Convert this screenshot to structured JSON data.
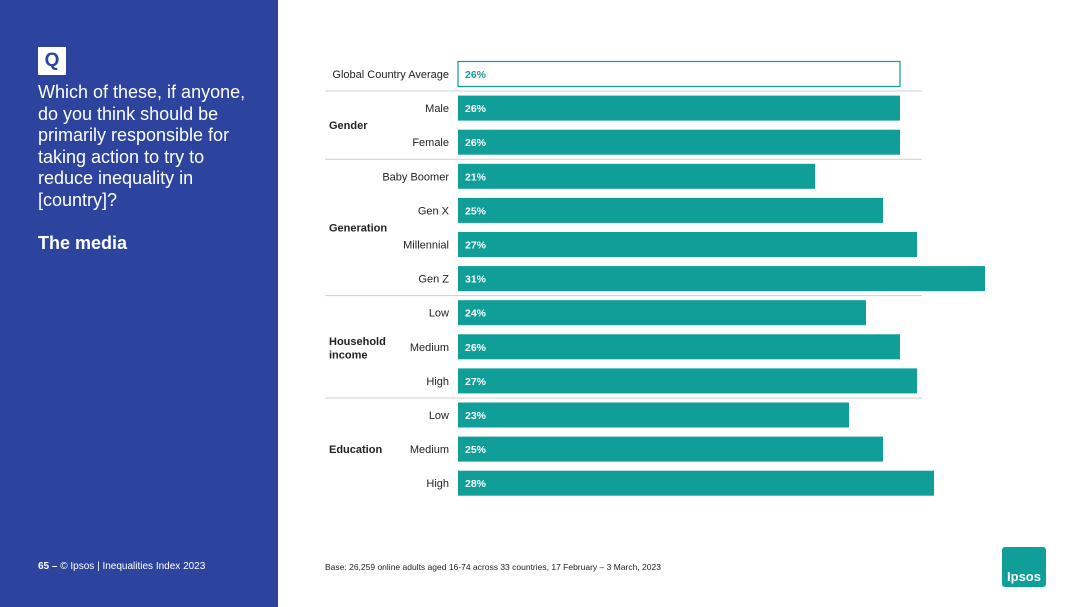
{
  "sidebar": {
    "badge": "Q",
    "question": "Which of these, if anyone, do you think should be primarily responsible for taking action to try to reduce inequality in [country]?",
    "answer": "The media"
  },
  "footer": {
    "page": "65 –",
    "copyright": "© Ipsos | Inequalities Index 2023"
  },
  "base_note": "Base: 26,259 online adults aged 16-74 across 33 countries, 17 February – 3 March, 2023",
  "logo": {
    "text": "Ipsos",
    "color": "#0f9e98"
  },
  "colors": {
    "sidebar": "#2c449d",
    "bar": "#0f9e98",
    "average_fill": "#ffffff",
    "average_outline": "#0f9e98"
  },
  "chart_data": {
    "type": "bar",
    "orientation": "horizontal",
    "unit": "%",
    "xlim": [
      0,
      31
    ],
    "average": {
      "label": "Global Country Average",
      "value": 26
    },
    "groups": [
      {
        "name": "Gender",
        "rows": [
          {
            "label": "Male",
            "value": 26
          },
          {
            "label": "Female",
            "value": 26
          }
        ]
      },
      {
        "name": "Generation",
        "rows": [
          {
            "label": "Baby Boomer",
            "value": 21
          },
          {
            "label": "Gen X",
            "value": 25
          },
          {
            "label": "Millennial",
            "value": 27
          },
          {
            "label": "Gen Z",
            "value": 31
          }
        ]
      },
      {
        "name": "Household income",
        "rows": [
          {
            "label": "Low",
            "value": 24
          },
          {
            "label": "Medium",
            "value": 26
          },
          {
            "label": "High",
            "value": 27
          }
        ]
      },
      {
        "name": "Education",
        "rows": [
          {
            "label": "Low",
            "value": 23
          },
          {
            "label": "Medium",
            "value": 25
          },
          {
            "label": "High",
            "value": 28
          }
        ]
      }
    ]
  }
}
